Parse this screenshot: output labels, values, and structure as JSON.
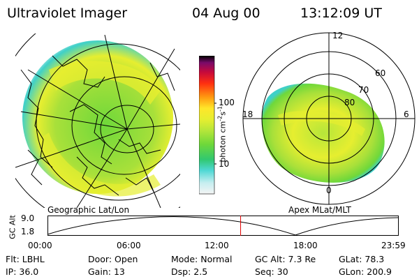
{
  "header": {
    "instrument": "Ultraviolet Imager",
    "date": "04 Aug 00",
    "time": "13:12:09 UT"
  },
  "left_panel": {
    "label": "Geographic Lat/Lon"
  },
  "right_panel": {
    "label": "Apex MLat/MLT",
    "mlt_labels": {
      "top": "12",
      "left": "18",
      "right": "6",
      "bottom": "0"
    },
    "lat_labels": [
      "60",
      "70",
      "80"
    ]
  },
  "colorbar": {
    "unit_label": "photon cm",
    "unit_sup1": "-2",
    "unit_mid": "s",
    "unit_sup2": "-1",
    "ticks": [
      "100",
      "10"
    ],
    "colors": [
      "#f4f4f4",
      "#c6eef0",
      "#4fd8d4",
      "#31c870",
      "#6fd83a",
      "#b6e63a",
      "#e6ee30",
      "#ffe62a",
      "#ff9a10",
      "#ff3010",
      "#c80a3a",
      "#7a0a6a",
      "#000000"
    ]
  },
  "altitude_plot": {
    "ylabel": "GC Alt",
    "yticks": [
      "9.0",
      "1.8"
    ],
    "xticks": [
      "00:00",
      "06:00",
      "12:00",
      "18:00",
      "23:59"
    ],
    "marker_time_fraction": 0.55
  },
  "footer": {
    "row1": [
      {
        "label": "Flt:",
        "value": "LBHL"
      },
      {
        "label": "Door:",
        "value": "Open"
      },
      {
        "label": "Mode:",
        "value": "Normal"
      },
      {
        "label": "GC Alt:",
        "value": "7.3 Re"
      },
      {
        "label": "GLat:",
        "value": "78.3"
      }
    ],
    "row2": [
      {
        "label": "IP:",
        "value": "36.0"
      },
      {
        "label": "Gain:",
        "value": "13"
      },
      {
        "label": "Dsp:",
        "value": "2.5"
      },
      {
        "label": "Seq:",
        "value": "30"
      },
      {
        "label": "GLon:",
        "value": "200.9"
      }
    ]
  },
  "colors": {
    "marker": "#e00000",
    "aurora_edge": "#3fd0c8",
    "aurora_main": "#a8e03a",
    "aurora_bright": "#eaf03a"
  }
}
